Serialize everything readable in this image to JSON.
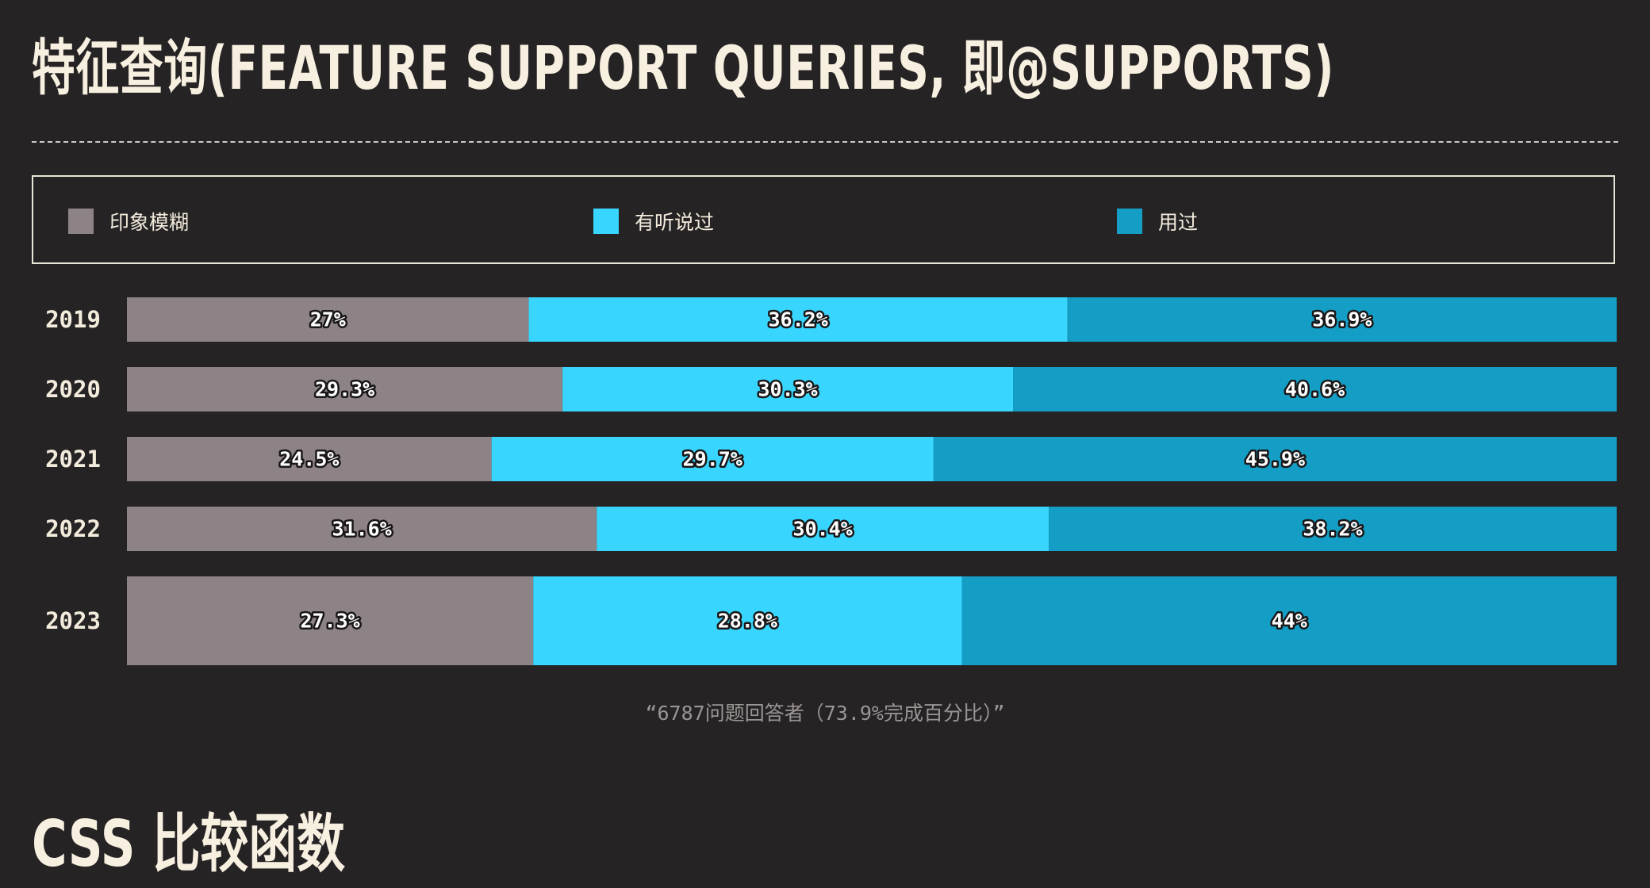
{
  "section": {
    "title": "特征查询(FEATURE SUPPORT QUERIES, 即@SUPPORTS)"
  },
  "legend": {
    "items": [
      {
        "label": "印象模糊",
        "color": "#8d8285"
      },
      {
        "label": "有听说过",
        "color": "#38d6fe"
      },
      {
        "label": "用过",
        "color": "#149ec5"
      }
    ]
  },
  "chart_data": {
    "type": "bar",
    "orientation": "horizontal",
    "stacked": true,
    "categories": [
      "2019",
      "2020",
      "2021",
      "2022",
      "2023"
    ],
    "series": [
      {
        "name": "印象模糊",
        "color": "#8d8285",
        "values": [
          27,
          29.3,
          24.5,
          31.6,
          27.3
        ],
        "labels": [
          "27%",
          "29.3%",
          "24.5%",
          "31.6%",
          "27.3%"
        ]
      },
      {
        "name": "有听说过",
        "color": "#38d6fe",
        "values": [
          36.2,
          30.3,
          29.7,
          30.4,
          28.8
        ],
        "labels": [
          "36.2%",
          "30.3%",
          "29.7%",
          "30.4%",
          "28.8%"
        ]
      },
      {
        "name": "用过",
        "color": "#149ec5",
        "values": [
          36.9,
          40.6,
          45.9,
          38.2,
          44
        ],
        "labels": [
          "36.9%",
          "40.6%",
          "45.9%",
          "38.2%",
          "44%"
        ]
      }
    ],
    "xlim": [
      0,
      100
    ],
    "grid": false,
    "legend": "top"
  },
  "footnote": {
    "text": "“6787问题回答者（73.9%完成百分比）”"
  },
  "next_section": {
    "title": "CSS 比较函数"
  }
}
